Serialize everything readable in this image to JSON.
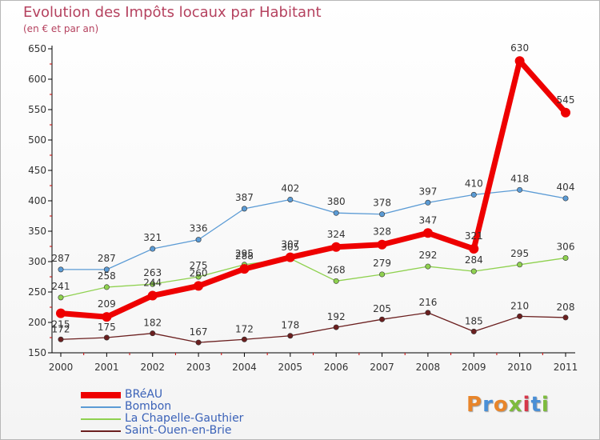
{
  "title": "Evolution des Impôts locaux par Habitant",
  "subtitle": "(en € et par an)",
  "logo_text": "Proxiti",
  "logo_colors": [
    "#e8852a",
    "#4a8fd6",
    "#e8852a",
    "#7dbb3c",
    "#d6374a",
    "#4a8fd6",
    "#7dbb3c"
  ],
  "chart_data": {
    "type": "line",
    "title": "Evolution des Impôts locaux par Habitant",
    "subtitle": "(en € et par an)",
    "xlabel": "",
    "ylabel": "",
    "x": [
      "2000",
      "2001",
      "2002",
      "2003",
      "2004",
      "2005",
      "2006",
      "2007",
      "2008",
      "2009",
      "2010",
      "2011"
    ],
    "ylim": [
      150,
      650
    ],
    "yticks": [
      150,
      200,
      250,
      300,
      350,
      400,
      450,
      500,
      550,
      600,
      650
    ],
    "grid": false,
    "legend": "bottom-left",
    "series": [
      {
        "name": "BRéAU",
        "color": "#ee0000",
        "values": [
          215,
          209,
          244,
          260,
          288,
          307,
          324,
          328,
          347,
          321,
          630,
          545
        ]
      },
      {
        "name": "Bombon",
        "color": "#5b9bd5",
        "values": [
          287,
          287,
          321,
          336,
          387,
          402,
          380,
          378,
          397,
          410,
          418,
          404
        ]
      },
      {
        "name": "La Chapelle-Gauthier",
        "color": "#8fd14f",
        "values": [
          241,
          258,
          263,
          275,
          295,
          305,
          268,
          279,
          292,
          284,
          295,
          306
        ]
      },
      {
        "name": "Saint-Ouen-en-Brie",
        "color": "#6b1f1f",
        "values": [
          172,
          175,
          182,
          167,
          172,
          178,
          192,
          205,
          216,
          185,
          210,
          208
        ]
      }
    ]
  }
}
